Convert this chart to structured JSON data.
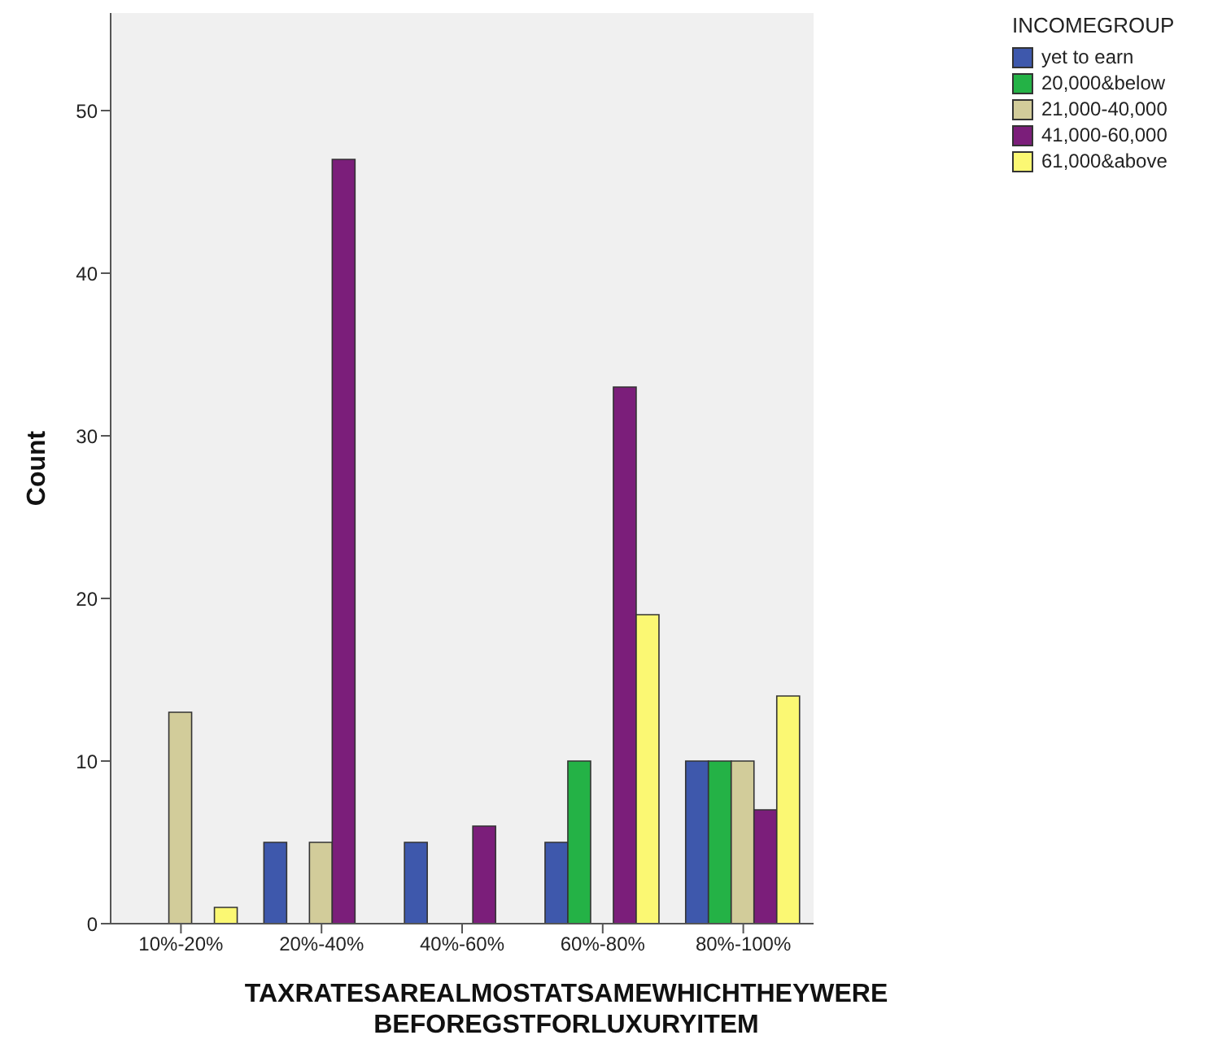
{
  "chart_data": {
    "type": "bar",
    "xlabel": "TAXRATESAREALMOSTATSAMEWHICHTHEYWERE BEFOREGSTFORLUXURYITEM",
    "ylabel": "Count",
    "legend_title": "INCOMEGROUP",
    "legend": "top right",
    "grid": false,
    "categories": [
      "10%-20%",
      "20%-40%",
      "40%-60%",
      "60%-80%",
      "80%-100%"
    ],
    "ylim": [
      0,
      56
    ],
    "yticks": [
      0,
      10,
      20,
      30,
      40,
      50
    ],
    "series": [
      {
        "name": "yet to earn",
        "color": "#3e58ac",
        "values": [
          null,
          5,
          5,
          5,
          10
        ]
      },
      {
        "name": "20,000&below",
        "color": "#24b246",
        "values": [
          null,
          null,
          null,
          10,
          10
        ]
      },
      {
        "name": "21,000-40,000",
        "color": "#d2cc9a",
        "values": [
          13,
          5,
          null,
          null,
          10
        ]
      },
      {
        "name": "41,000-60,000",
        "color": "#7b1e7a",
        "values": [
          null,
          47,
          6,
          33,
          7
        ]
      },
      {
        "name": "61,000&above",
        "color": "#fbf873",
        "values": [
          1,
          null,
          null,
          19,
          14
        ]
      }
    ]
  }
}
